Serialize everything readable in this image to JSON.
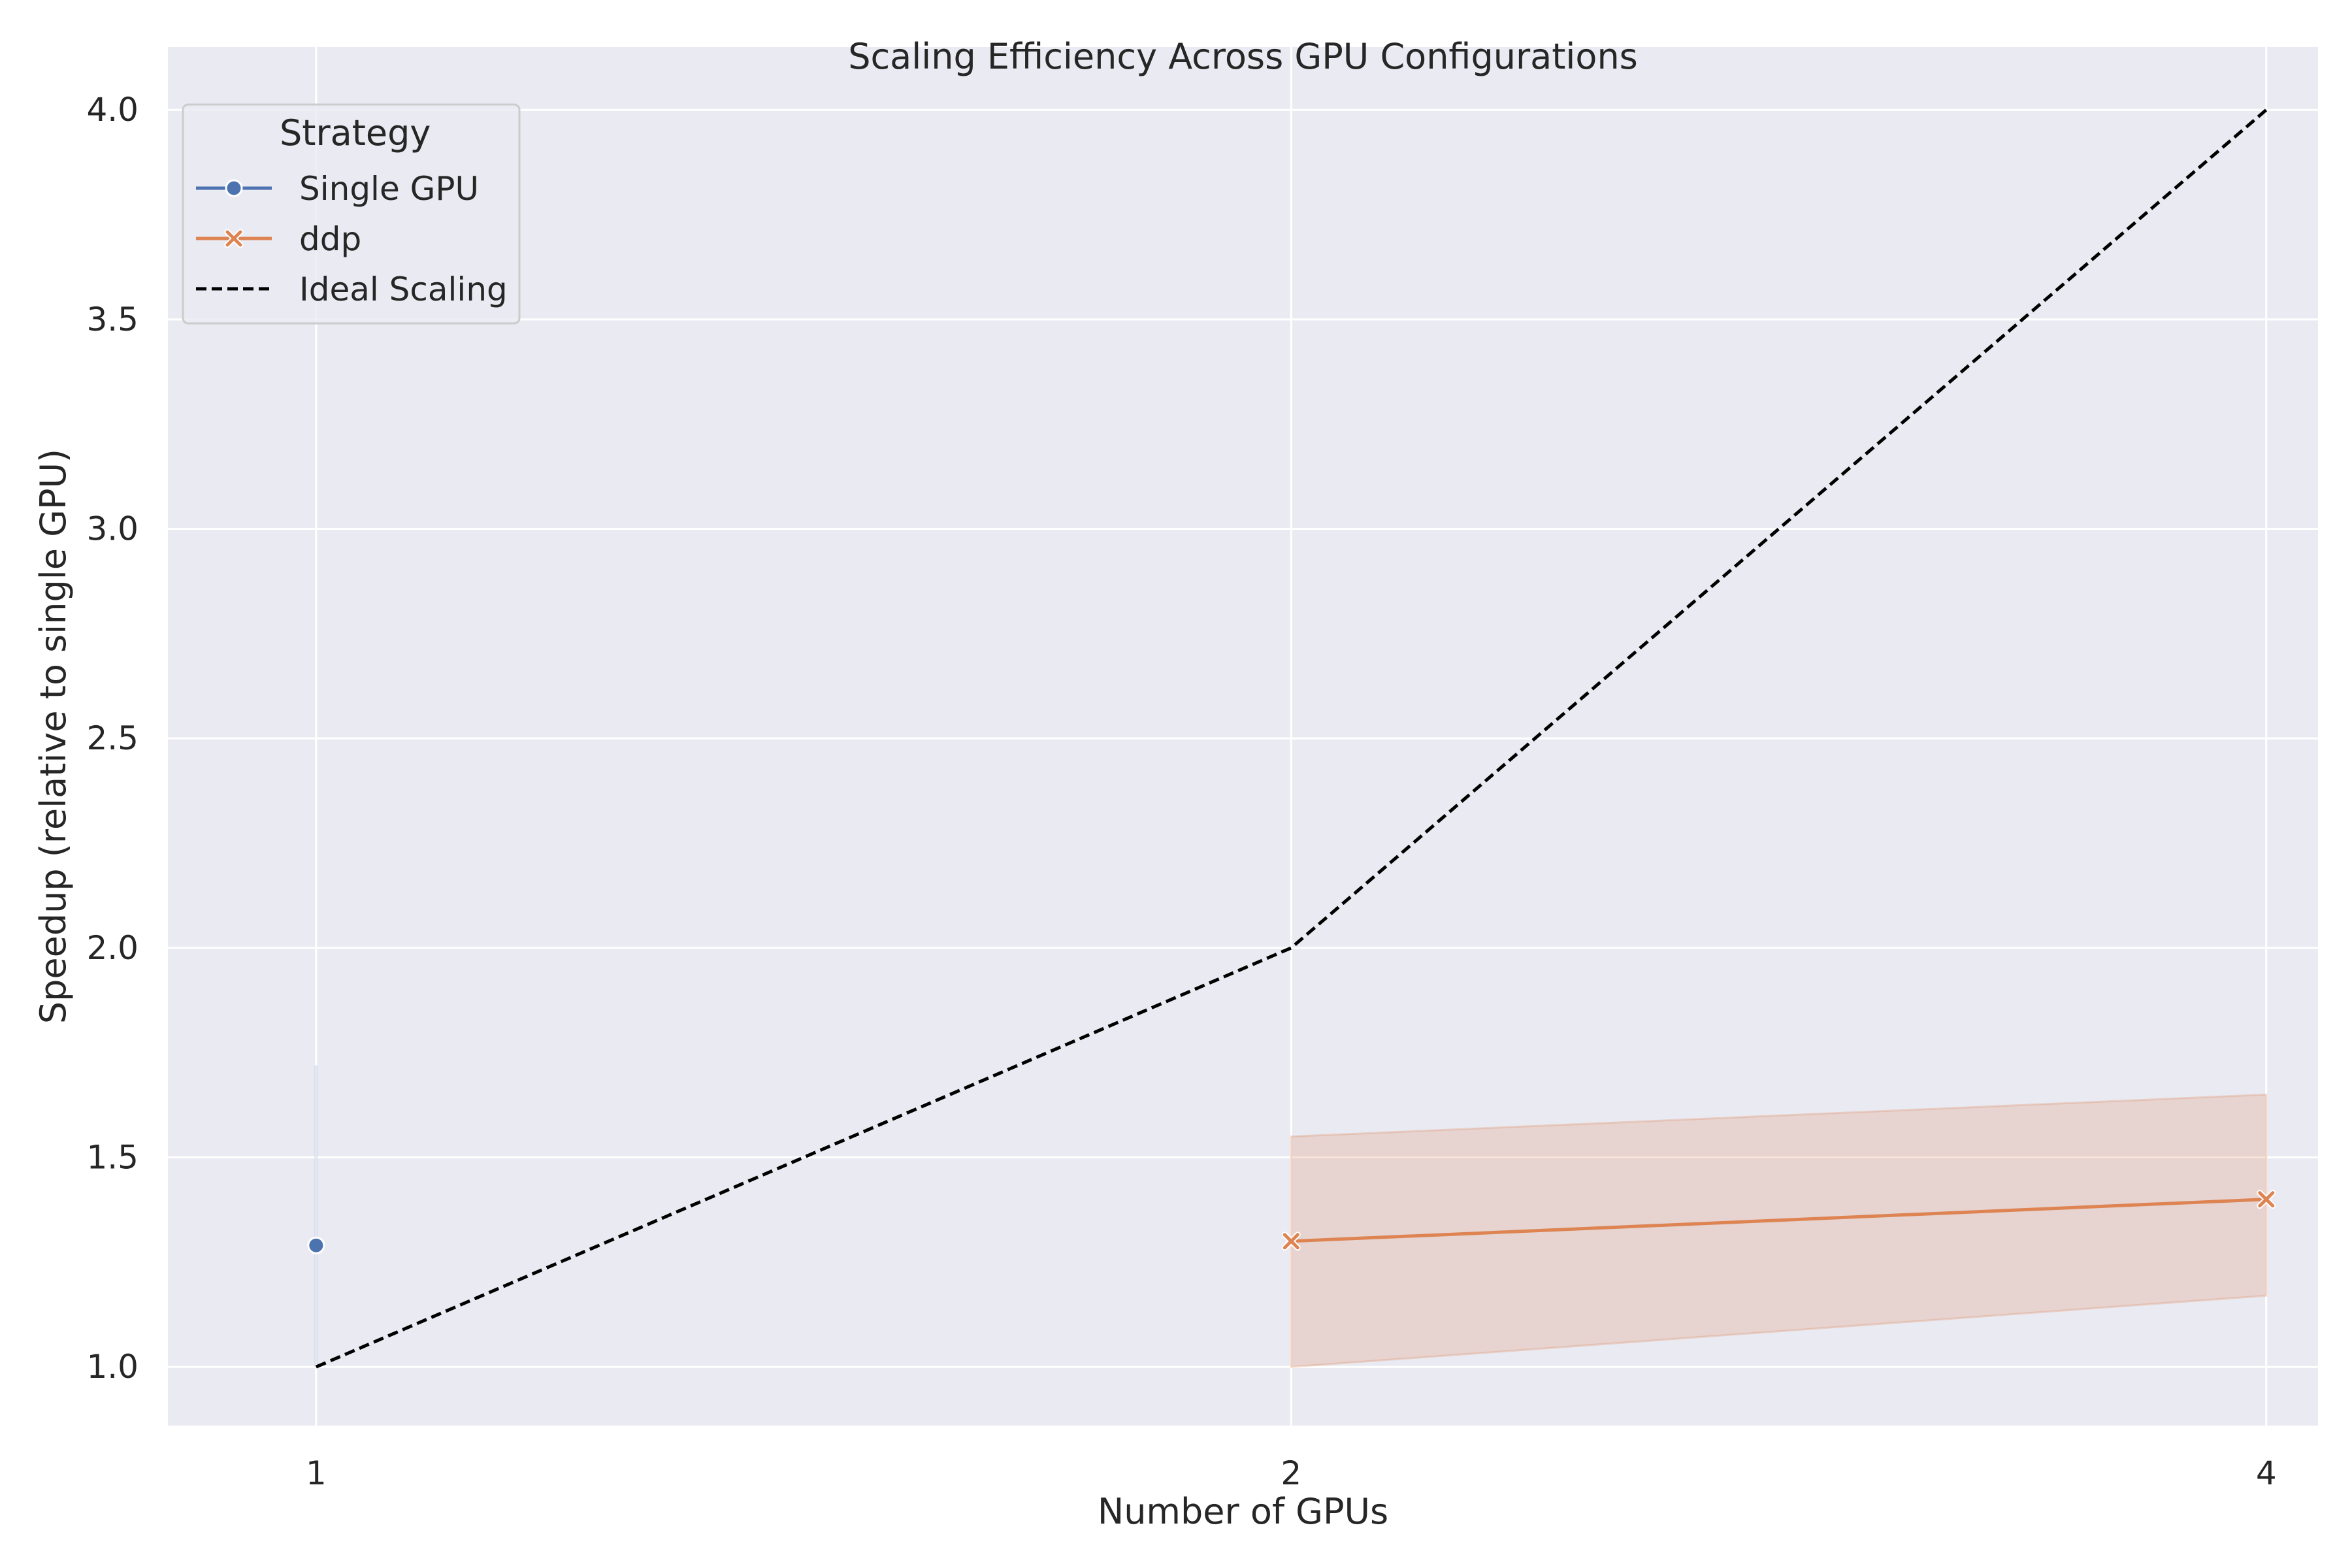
{
  "chart_data": {
    "type": "line",
    "title": "Scaling Efficiency Across GPU Configurations",
    "xlabel": "Number of GPUs",
    "ylabel": "Speedup (relative to single GPU)",
    "x_ticks": [
      1,
      2,
      4
    ],
    "x_scale": "log2",
    "ylim": [
      0.86,
      4.15
    ],
    "y_ticks": [
      "1.0",
      "1.5",
      "2.0",
      "2.5",
      "3.0",
      "3.5",
      "4.0"
    ],
    "grid": true,
    "legend": {
      "title": "Strategy",
      "placement": "top-left"
    },
    "series": [
      {
        "name": "Single GPU",
        "color": "#4c72b0",
        "marker": "circle",
        "x": [
          1
        ],
        "y": [
          1.29
        ],
        "ci_low": [
          1.0
        ],
        "ci_high": [
          1.72
        ]
      },
      {
        "name": "ddp",
        "color": "#dd8452",
        "marker": "x",
        "x": [
          2,
          4
        ],
        "y": [
          1.3,
          1.4
        ],
        "ci_low": [
          1.0,
          1.17
        ],
        "ci_high": [
          1.55,
          1.65
        ]
      },
      {
        "name": "Ideal Scaling",
        "color": "#000000",
        "dashed": true,
        "x": [
          1,
          2,
          4
        ],
        "y": [
          1.0,
          2.0,
          4.0
        ]
      }
    ]
  }
}
